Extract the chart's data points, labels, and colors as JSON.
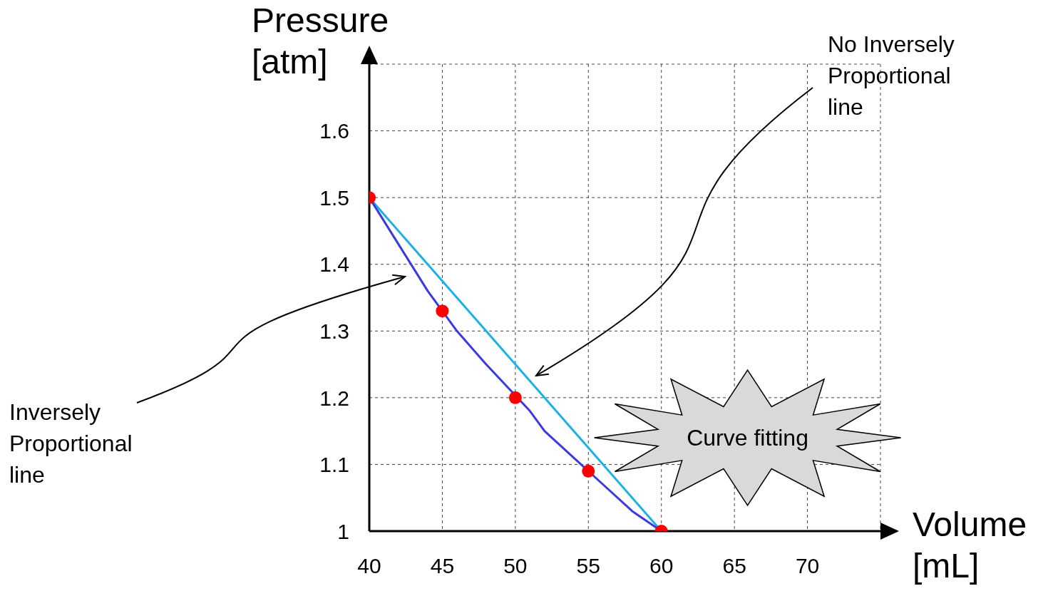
{
  "chart_data": {
    "type": "line",
    "xlabel": "Volume [mL]",
    "ylabel": "Pressure [atm]",
    "xlim": [
      40,
      75
    ],
    "ylim": [
      1,
      1.7
    ],
    "xticks": [
      40,
      45,
      50,
      55,
      60,
      65,
      70
    ],
    "yticks": [
      1,
      1.1,
      1.2,
      1.3,
      1.4,
      1.5,
      1.6
    ],
    "grid": true,
    "line_style": "solid",
    "series": [
      {
        "color": "#1ab0e8",
        "x": [
          40,
          60
        ],
        "values": [
          1.5,
          1.0
        ]
      },
      {
        "color": "#3a3ae0",
        "x": [
          40,
          42,
          44,
          46,
          48,
          51,
          52,
          54,
          56,
          58,
          60
        ],
        "values": [
          1.5,
          1.43,
          1.36,
          1.3,
          1.25,
          1.18,
          1.15,
          1.11,
          1.07,
          1.03,
          1.0
        ]
      },
      {
        "type": "scatter",
        "color": "#ff0000",
        "marker": "circle",
        "x": [
          40,
          45,
          50,
          55,
          60
        ],
        "values": [
          1.5,
          1.33,
          1.2,
          1.09,
          1.0
        ]
      }
    ],
    "annotations": [
      "No Inversely Proportional line",
      "Inversely Proportional line",
      "Curve fitting"
    ]
  }
}
